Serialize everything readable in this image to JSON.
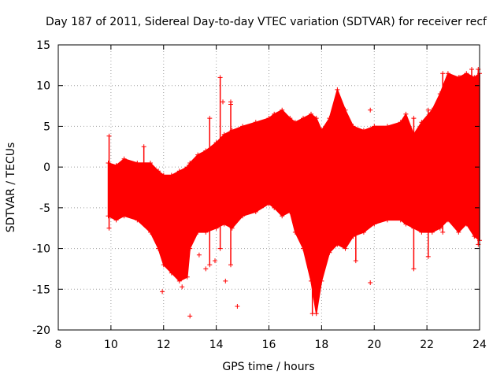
{
  "chart_data": {
    "type": "scatter",
    "title": "Day 187 of 2011, Sidereal Day-to-day VTEC variation (SDTVAR) for receiver recf",
    "xlabel": "GPS time / hours",
    "ylabel": "SDTVAR / TECUs",
    "xlim": [
      8,
      24
    ],
    "ylim": [
      -20,
      15
    ],
    "x_ticks": [
      8,
      10,
      12,
      14,
      16,
      18,
      20,
      22,
      24
    ],
    "x_tick_labels": [
      "8",
      "10",
      "12",
      "14",
      "16",
      "18",
      "20",
      "22",
      "24"
    ],
    "y_ticks": [
      -20,
      -15,
      -10,
      -5,
      0,
      5,
      10,
      15
    ],
    "y_tick_labels": [
      "-20",
      "-15",
      "-10",
      "-5",
      "0",
      "5",
      "10",
      "15"
    ],
    "grid": true,
    "series_color": "#ff0000",
    "marker": "+",
    "envelope": {
      "description": "Dense cloud of SDTVAR samples; upper and lower bounds by GPS time",
      "x": [
        9.9,
        10.2,
        10.5,
        11.0,
        11.5,
        11.8,
        12.0,
        12.3,
        12.6,
        12.9,
        13.0,
        13.3,
        13.6,
        14.0,
        14.3,
        14.6,
        15.0,
        15.5,
        16.0,
        16.2,
        16.5,
        16.8,
        17.0,
        17.3,
        17.6,
        17.8,
        18.0,
        18.3,
        18.6,
        18.9,
        19.2,
        19.6,
        20.0,
        20.5,
        21.0,
        21.2,
        21.5,
        21.8,
        22.2,
        22.5,
        22.8,
        23.2,
        23.5,
        23.8,
        24.0
      ],
      "upper": [
        0.5,
        0.2,
        1.0,
        0.5,
        0.5,
        -0.5,
        -1.0,
        -1.0,
        -0.5,
        0.0,
        0.5,
        1.5,
        2.0,
        3.0,
        4.0,
        4.5,
        5.0,
        5.5,
        6.0,
        6.5,
        7.0,
        6.0,
        5.5,
        6.0,
        6.5,
        6.0,
        4.5,
        6.0,
        9.5,
        7.0,
        5.0,
        4.5,
        5.0,
        5.0,
        5.5,
        6.5,
        4.0,
        5.5,
        7.0,
        9.0,
        11.5,
        11.0,
        11.5,
        11.0,
        11.5
      ],
      "lower": [
        -6.0,
        -6.5,
        -6.0,
        -6.5,
        -8.0,
        -10.0,
        -12.0,
        -13.0,
        -14.0,
        -13.5,
        -10.0,
        -8.0,
        -8.0,
        -7.5,
        -7.0,
        -7.5,
        -6.0,
        -5.5,
        -4.5,
        -5.0,
        -6.0,
        -5.5,
        -8.0,
        -10.0,
        -14.0,
        -18.0,
        -14.0,
        -10.5,
        -9.5,
        -10.0,
        -8.5,
        -8.0,
        -7.0,
        -6.5,
        -6.5,
        -7.0,
        -7.5,
        -8.0,
        -8.0,
        -7.5,
        -6.5,
        -8.0,
        -7.0,
        -8.5,
        -9.0
      ]
    },
    "spikes": [
      {
        "x": 9.93,
        "low": -7.5,
        "high": 3.8
      },
      {
        "x": 11.25,
        "low": -1.0,
        "high": 2.5
      },
      {
        "x": 13.75,
        "low": -12.0,
        "high": 6.0
      },
      {
        "x": 14.15,
        "low": -10.0,
        "high": 11.0
      },
      {
        "x": 14.55,
        "low": -12.0,
        "high": 8.0
      },
      {
        "x": 17.65,
        "low": -18.0,
        "high": -3.0
      },
      {
        "x": 19.3,
        "low": -11.5,
        "high": -7.0
      },
      {
        "x": 21.5,
        "low": -12.5,
        "high": 6.0
      },
      {
        "x": 22.05,
        "low": -11.0,
        "high": 7.0
      },
      {
        "x": 22.6,
        "low": -8.0,
        "high": 11.5
      },
      {
        "x": 23.25,
        "low": -7.0,
        "high": 11.0
      },
      {
        "x": 23.7,
        "low": -6.0,
        "high": 12.0
      },
      {
        "x": 23.95,
        "low": -9.5,
        "high": 12.0
      }
    ],
    "outliers": [
      {
        "x": 11.95,
        "y": -15.3
      },
      {
        "x": 12.7,
        "y": -14.7
      },
      {
        "x": 13.0,
        "y": -18.3
      },
      {
        "x": 13.35,
        "y": -10.8
      },
      {
        "x": 13.6,
        "y": -12.5
      },
      {
        "x": 13.95,
        "y": -11.5
      },
      {
        "x": 14.35,
        "y": -14.0
      },
      {
        "x": 14.8,
        "y": -17.1
      },
      {
        "x": 14.25,
        "y": 8.0
      },
      {
        "x": 14.55,
        "y": 7.7
      },
      {
        "x": 19.85,
        "y": 7.0
      },
      {
        "x": 19.85,
        "y": -14.2
      }
    ]
  }
}
